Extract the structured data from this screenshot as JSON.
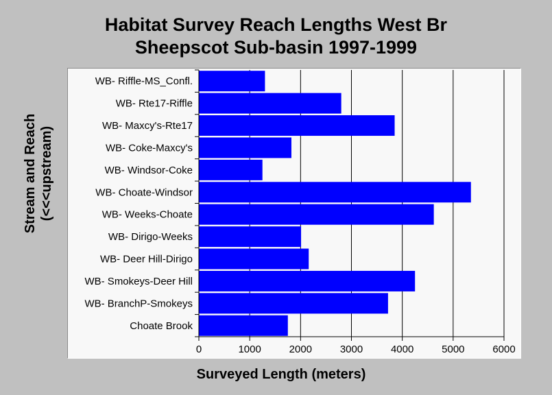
{
  "chart_data": {
    "type": "bar",
    "orientation": "horizontal",
    "title_lines": [
      "Habitat Survey Reach Lengths West Br",
      "Sheepscot Sub-basin 1997-1999"
    ],
    "xlabel": "Surveyed Length (meters)",
    "ylabel_lines": [
      "Stream and Reach",
      "(<<<upstream)"
    ],
    "xlim": [
      0,
      6000
    ],
    "xticks": [
      "0",
      "1000",
      "2000",
      "3000",
      "4000",
      "5000",
      "6000"
    ],
    "categories": [
      "WB- Riffle-MS_Confl.",
      "WB- Rte17-Riffle",
      "WB- Maxcy's-Rte17",
      "WB- Coke-Maxcy's",
      "WB- Windsor-Coke",
      "WB- Choate-Windsor",
      "WB- Weeks-Choate",
      "WB- Dirigo-Weeks",
      "WB- Deer Hill-Dirigo",
      "WB- Smokeys-Deer Hill",
      "WB- BranchP-Smokeys",
      "Choate Brook"
    ],
    "values": [
      1300,
      2800,
      3850,
      1820,
      1250,
      5350,
      4620,
      2010,
      2160,
      4250,
      3720,
      1750
    ],
    "bar_color": "#0000ff",
    "grid": "vertical"
  }
}
